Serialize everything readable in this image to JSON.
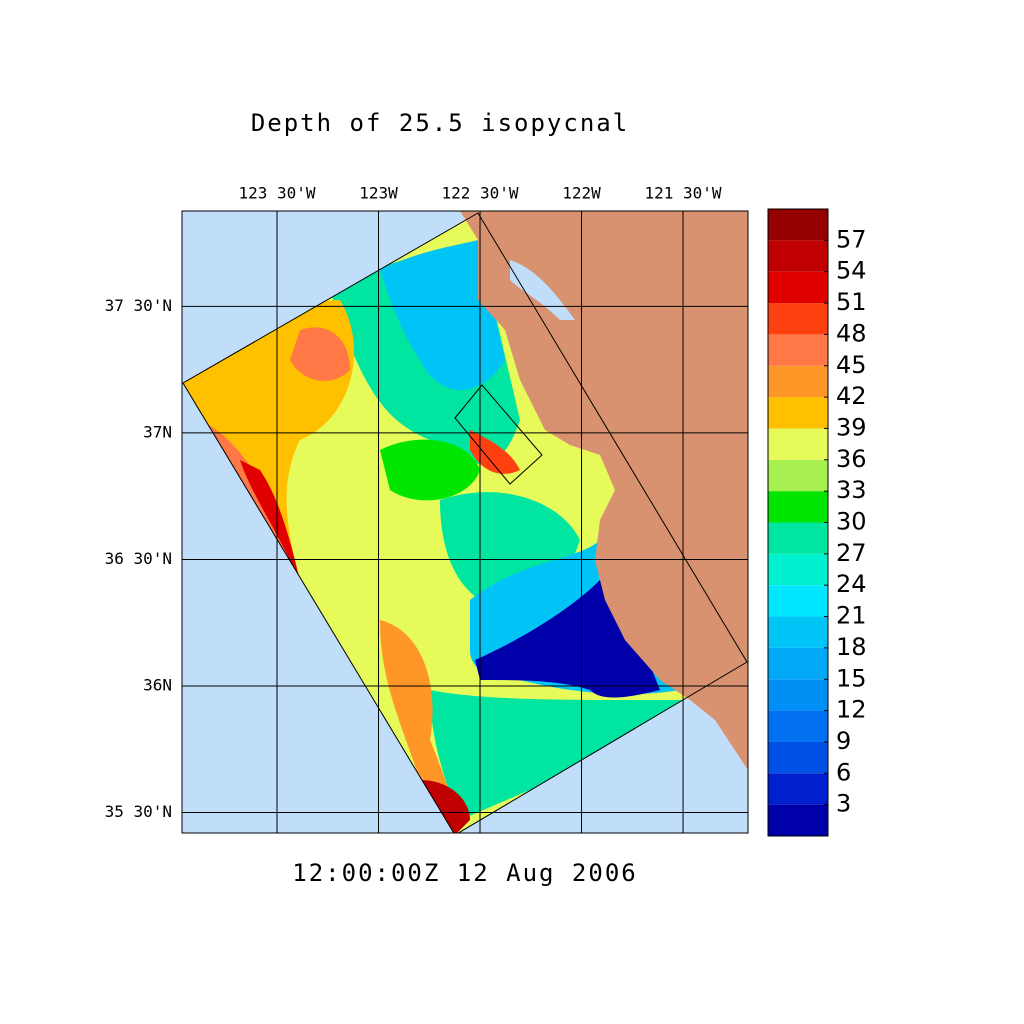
{
  "title": "Depth of 25.5 isopycnal",
  "timestamp": "12:00:00Z  12 Aug 2006",
  "map": {
    "xlim": [
      -123.968,
      -121.18
    ],
    "ylim": [
      35.419,
      37.877
    ],
    "lon_ticks": [
      {
        "value": -123.5,
        "label": "123 30'W"
      },
      {
        "value": -123,
        "label": "123W"
      },
      {
        "value": -122.5,
        "label": "122 30'W"
      },
      {
        "value": -122,
        "label": "122W"
      },
      {
        "value": -121.5,
        "label": "121 30'W"
      }
    ],
    "lat_ticks": [
      {
        "value": 37.5,
        "label": "37 30'N"
      },
      {
        "value": 37,
        "label": "37N"
      },
      {
        "value": 36.5,
        "label": "36 30'N"
      },
      {
        "value": 36,
        "label": "36N"
      },
      {
        "value": 35.5,
        "label": "35 30'N"
      }
    ]
  },
  "colorbar": {
    "lim": [
      0,
      60
    ],
    "ticks": [
      3,
      6,
      9,
      12,
      15,
      18,
      21,
      24,
      27,
      30,
      33,
      36,
      39,
      42,
      45,
      48,
      51,
      54,
      57
    ],
    "colors": [
      "#0000aa",
      "#0020d0",
      "#0050e6",
      "#0070f0",
      "#0090f5",
      "#00a8f5",
      "#00c4f5",
      "#00e6ff",
      "#00f0d0",
      "#00e6a0",
      "#00e600",
      "#a8f050",
      "#e6fa5a",
      "#ffc000",
      "#ff9628",
      "#ff7846",
      "#ff4010",
      "#e10000",
      "#c00000",
      "#960000"
    ]
  }
}
